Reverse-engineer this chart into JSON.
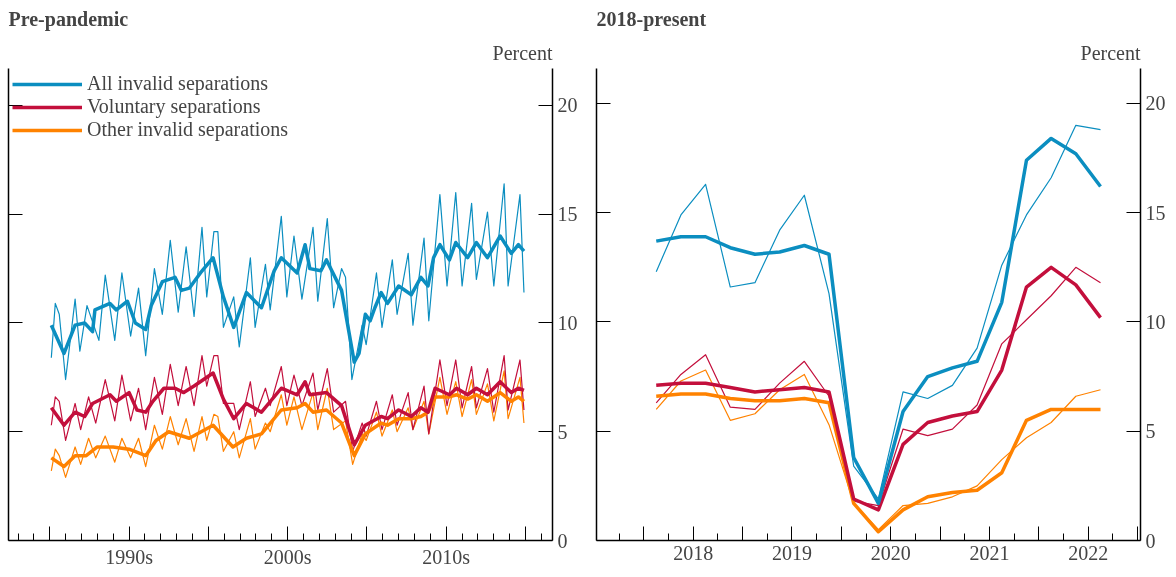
{
  "chart_data": [
    {
      "type": "line",
      "title": "Pre-pandemic",
      "ylabel": "Percent",
      "legend": "top left",
      "grid": false,
      "xlim": [
        1982.4,
        2016.7
      ],
      "ylim": [
        0,
        21.7
      ],
      "xticks": [
        {
          "value": 1985,
          "label": null
        },
        {
          "value": 1990,
          "label": "1990s"
        },
        {
          "value": 1995,
          "label": null
        },
        {
          "value": 2000,
          "label": "2000s"
        },
        {
          "value": 2005,
          "label": null
        },
        {
          "value": 2010,
          "label": "2010s"
        },
        {
          "value": 2015,
          "label": null
        }
      ],
      "yticks": [
        0,
        5,
        10,
        15,
        20
      ],
      "series": [
        {
          "name": "All invalid separations",
          "color": "#0b8ec0",
          "x": [
            1985.1,
            1985.9,
            1986.6,
            1987.2,
            1987.7,
            1987.85,
            1988.8,
            1989.2,
            1989.9,
            1990.4,
            1991.05,
            1991.4,
            1992.1,
            1992.9,
            1993.3,
            1993.8,
            1994.5,
            1995.3,
            1995.95,
            1996.6,
            1997.4,
            1998.35,
            1999.15,
            1999.6,
            2000.6,
            2001.1,
            2001.4,
            2002.1,
            2002.45,
            2003.4,
            2004.2,
            2004.5,
            2004.9,
            2005.2,
            2005.5,
            2005.9,
            2006.3,
            2007.0,
            2007.8,
            2008.4,
            2008.85,
            2009.2,
            2009.6,
            2010.2,
            2010.6,
            2011.35,
            2011.9,
            2012.6,
            2013.4,
            2014.1,
            2014.55,
            2014.9
          ],
          "values": [
            9.9,
            8.6,
            9.9,
            10.0,
            9.6,
            10.6,
            10.9,
            10.6,
            11.0,
            10.0,
            9.7,
            10.8,
            11.9,
            12.1,
            11.5,
            11.6,
            12.3,
            13.0,
            11.2,
            9.8,
            11.4,
            10.7,
            12.4,
            13.0,
            12.3,
            13.6,
            12.5,
            12.4,
            12.9,
            11.5,
            8.2,
            8.6,
            10.4,
            10.1,
            10.7,
            11.4,
            10.9,
            11.7,
            11.3,
            12.1,
            11.7,
            13.0,
            13.6,
            12.9,
            13.7,
            13.0,
            13.7,
            13.0,
            14.0,
            13.2,
            13.6,
            13.3
          ]
        },
        {
          "name": "Voluntary separations",
          "color": "#c30f3c",
          "x": [
            1985.1,
            1985.9,
            1986.6,
            1987.2,
            1987.7,
            1988.8,
            1989.2,
            1990.0,
            1990.5,
            1991.05,
            1991.5,
            1992.2,
            1992.9,
            1993.45,
            1994.1,
            1995.3,
            1995.95,
            1996.6,
            1997.4,
            1998.35,
            1999.6,
            2000.6,
            2001.1,
            2001.4,
            2002.45,
            2003.4,
            2004.2,
            2004.9,
            2005.9,
            2006.3,
            2007.0,
            2007.8,
            2008.4,
            2008.85,
            2009.3,
            2010.2,
            2010.65,
            2011.35,
            2011.9,
            2012.6,
            2013.4,
            2014.1,
            2014.55,
            2014.9
          ],
          "values": [
            6.1,
            5.3,
            5.9,
            5.7,
            6.3,
            6.7,
            6.4,
            6.8,
            6.0,
            5.9,
            6.4,
            7.0,
            7.0,
            6.8,
            7.1,
            7.7,
            6.5,
            5.6,
            6.3,
            5.9,
            7.0,
            6.7,
            7.3,
            6.7,
            6.8,
            6.2,
            4.4,
            5.3,
            5.7,
            5.6,
            6.0,
            5.7,
            6.1,
            5.9,
            7.0,
            6.7,
            7.0,
            6.7,
            7.0,
            6.7,
            7.3,
            6.8,
            7.0,
            6.9
          ]
        },
        {
          "name": "Other invalid separations",
          "color": "#ff8200",
          "x": [
            1985.1,
            1985.9,
            1986.6,
            1987.3,
            1988.0,
            1989.0,
            1990.0,
            1991.05,
            1991.7,
            1992.5,
            1993.8,
            1995.3,
            1996.55,
            1997.4,
            1998.35,
            1999.6,
            2000.6,
            2001.1,
            2001.6,
            2002.45,
            2003.4,
            2004.2,
            2004.9,
            2005.9,
            2006.3,
            2007.0,
            2007.8,
            2008.4,
            2008.85,
            2009.3,
            2010.2,
            2010.65,
            2011.35,
            2011.9,
            2012.6,
            2013.4,
            2014.1,
            2014.55,
            2014.9
          ],
          "values": [
            3.8,
            3.4,
            3.9,
            3.9,
            4.3,
            4.3,
            4.2,
            3.9,
            4.6,
            5.0,
            4.7,
            5.3,
            4.3,
            4.7,
            4.9,
            6.0,
            6.1,
            6.3,
            5.9,
            6.0,
            5.4,
            3.9,
            4.9,
            5.4,
            5.3,
            5.6,
            5.6,
            5.7,
            5.9,
            6.6,
            6.6,
            6.7,
            6.5,
            6.7,
            6.4,
            6.8,
            6.4,
            6.6,
            6.4
          ]
        },
        {
          "color": "#0b8ec0",
          "x": [
            1985.1,
            1985.35,
            1985.6,
            1986.0,
            1986.6,
            1986.9,
            1987.35,
            1988.1,
            1988.5,
            1989.1,
            1989.55,
            1990.1,
            1990.6,
            1991.05,
            1991.6,
            1992.1,
            1992.6,
            1993.1,
            1993.6,
            1994.1,
            1994.6,
            1994.9,
            1995.35,
            1995.6,
            1995.95,
            1996.6,
            1996.95,
            1997.65,
            1997.95,
            1998.6,
            1998.9,
            1999.6,
            1999.95,
            2000.4,
            2000.9,
            2001.6,
            2001.9,
            2002.5,
            2002.9,
            2003.4,
            2003.65,
            2004.05,
            2004.7,
            2004.95,
            2005.6,
            2005.95,
            2006.6,
            2006.9,
            2007.6,
            2007.9,
            2008.6,
            2008.9,
            2009.6,
            2010.05,
            2010.6,
            2011.0,
            2011.6,
            2011.9,
            2012.6,
            2013.0,
            2013.65,
            2013.9,
            2014.65,
            2014.9
          ],
          "values": [
            8.4,
            10.9,
            10.4,
            7.4,
            11.1,
            8.7,
            10.8,
            9.2,
            12.2,
            9.2,
            12.3,
            9.4,
            11.6,
            8.5,
            12.5,
            10.4,
            13.8,
            10.5,
            13.5,
            10.3,
            14.4,
            11.2,
            14.2,
            14.2,
            9.8,
            11.2,
            8.9,
            13.0,
            9.8,
            12.7,
            10.6,
            14.9,
            11.2,
            14.0,
            11.1,
            14.4,
            11.0,
            14.8,
            10.7,
            12.5,
            12.1,
            7.4,
            9.9,
            9.0,
            12.3,
            9.8,
            12.9,
            10.4,
            13.2,
            9.9,
            13.9,
            10.1,
            15.9,
            11.7,
            16.0,
            11.7,
            15.5,
            12.0,
            15.1,
            11.7,
            16.4,
            11.7,
            15.9,
            11.4
          ]
        },
        {
          "color": "#c30f3c",
          "x": [
            1985.1,
            1985.35,
            1985.6,
            1986.0,
            1986.6,
            1986.95,
            1987.45,
            1987.9,
            1988.5,
            1989.1,
            1989.55,
            1990.1,
            1990.6,
            1991.05,
            1991.6,
            1992.1,
            1992.6,
            1993.1,
            1993.6,
            1994.1,
            1994.6,
            1994.9,
            1995.35,
            1995.6,
            1995.95,
            1996.6,
            1996.95,
            1997.65,
            1997.95,
            1998.6,
            1998.9,
            1999.6,
            1999.95,
            2000.4,
            2000.9,
            2001.6,
            2001.9,
            2002.5,
            2002.9,
            2003.65,
            2004.1,
            2004.7,
            2004.95,
            2005.6,
            2005.95,
            2006.6,
            2006.9,
            2007.6,
            2007.9,
            2008.6,
            2008.9,
            2009.6,
            2010.05,
            2010.6,
            2011.0,
            2011.6,
            2011.9,
            2012.6,
            2013.0,
            2013.65,
            2013.9,
            2014.65,
            2014.9
          ],
          "values": [
            5.3,
            6.6,
            6.4,
            4.6,
            6.3,
            5.1,
            6.6,
            5.4,
            7.4,
            5.5,
            7.6,
            5.5,
            7.0,
            5.1,
            7.5,
            5.8,
            8.1,
            6.2,
            8.0,
            6.2,
            8.5,
            7.1,
            8.5,
            8.5,
            6.3,
            6.3,
            5.1,
            7.3,
            5.7,
            7.0,
            6.2,
            8.0,
            6.2,
            7.6,
            6.2,
            7.7,
            6.0,
            7.9,
            5.9,
            6.4,
            4.1,
            5.4,
            4.8,
            6.4,
            5.1,
            6.7,
            5.3,
            6.8,
            5.1,
            7.1,
            4.9,
            8.3,
            6.2,
            8.3,
            6.1,
            8.0,
            6.1,
            7.9,
            5.9,
            8.5,
            6.0,
            8.3,
            6.0
          ]
        },
        {
          "color": "#ff8200",
          "x": [
            1985.1,
            1985.35,
            1985.6,
            1986.0,
            1986.6,
            1986.95,
            1987.45,
            1987.9,
            1988.5,
            1989.1,
            1989.55,
            1990.1,
            1990.6,
            1991.05,
            1991.6,
            1992.1,
            1992.6,
            1993.1,
            1993.6,
            1994.1,
            1994.6,
            1994.9,
            1995.35,
            1995.6,
            1995.95,
            1996.6,
            1996.95,
            1997.65,
            1997.95,
            1998.6,
            1998.9,
            1999.6,
            1999.95,
            2000.4,
            2000.9,
            2001.6,
            2001.9,
            2002.5,
            2002.9,
            2003.65,
            2004.1,
            2004.7,
            2004.95,
            2005.6,
            2005.95,
            2006.6,
            2006.9,
            2007.6,
            2007.9,
            2008.6,
            2008.9,
            2009.6,
            2010.05,
            2010.6,
            2011.0,
            2011.6,
            2011.9,
            2012.6,
            2013.0,
            2013.65,
            2013.9,
            2014.65,
            2014.9
          ],
          "values": [
            3.2,
            4.2,
            3.9,
            2.9,
            4.3,
            3.5,
            4.7,
            3.8,
            4.8,
            3.6,
            4.7,
            3.8,
            4.7,
            3.4,
            5.3,
            4.2,
            5.7,
            4.4,
            5.6,
            4.1,
            5.7,
            4.6,
            5.8,
            5.7,
            4.1,
            5.0,
            3.8,
            5.6,
            4.2,
            5.4,
            5.0,
            6.7,
            5.3,
            6.6,
            5.1,
            6.8,
            5.1,
            7.0,
            5.1,
            5.5,
            3.5,
            4.9,
            4.6,
            5.9,
            4.8,
            6.0,
            5.0,
            6.1,
            5.1,
            6.4,
            4.9,
            7.5,
            5.8,
            7.3,
            5.7,
            7.4,
            5.8,
            7.2,
            5.5,
            7.8,
            5.6,
            7.5,
            5.4
          ]
        }
      ]
    },
    {
      "type": "line",
      "title": "2018-present",
      "ylabel": "Percent",
      "grid": false,
      "xlim": [
        2017.52,
        2023.03
      ],
      "ylim": [
        0,
        21.6
      ],
      "xticks": [
        {
          "value": 2018,
          "label": null
        },
        {
          "value": 2018.5,
          "label": "2018"
        },
        {
          "value": 2019,
          "label": null
        },
        {
          "value": 2019.5,
          "label": "2019"
        },
        {
          "value": 2020,
          "label": null
        },
        {
          "value": 2020.5,
          "label": "2020"
        },
        {
          "value": 2021,
          "label": null
        },
        {
          "value": 2021.5,
          "label": "2021"
        },
        {
          "value": 2022,
          "label": null
        },
        {
          "value": 2022.5,
          "label": "2022"
        },
        {
          "value": 2023,
          "label": null
        }
      ],
      "yticks": [
        0,
        5,
        10,
        15,
        20
      ],
      "x": [
        2018.125,
        2018.375,
        2018.625,
        2018.875,
        2019.125,
        2019.375,
        2019.625,
        2019.875,
        2020.125,
        2020.375,
        2020.625,
        2020.875,
        2021.125,
        2021.375,
        2021.625,
        2021.875,
        2022.125,
        2022.375,
        2022.625
      ],
      "series": [
        {
          "color": "#0b8ec0",
          "values": [
            13.7,
            13.9,
            13.9,
            13.4,
            13.1,
            13.2,
            13.5,
            13.1,
            3.8,
            1.7,
            5.9,
            7.5,
            7.9,
            8.2,
            10.9,
            17.4,
            18.4,
            17.7,
            16.2
          ]
        },
        {
          "color": "#c30f3c",
          "values": [
            7.1,
            7.2,
            7.2,
            7.0,
            6.8,
            6.9,
            7.0,
            6.8,
            1.9,
            1.4,
            4.4,
            5.4,
            5.7,
            5.9,
            7.8,
            11.6,
            12.5,
            11.7,
            10.2
          ]
        },
        {
          "color": "#ff8200",
          "values": [
            6.6,
            6.7,
            6.7,
            6.5,
            6.4,
            6.4,
            6.5,
            6.3,
            1.7,
            0.4,
            1.4,
            2.0,
            2.2,
            2.3,
            3.1,
            5.5,
            6.0,
            6.0,
            6.0
          ]
        },
        {
          "color": "#0b8ec0",
          "values": [
            12.3,
            14.9,
            16.3,
            11.6,
            11.8,
            14.2,
            15.8,
            11.3,
            3.4,
            1.9,
            6.8,
            6.5,
            7.1,
            8.8,
            12.6,
            14.9,
            16.6,
            19.0,
            18.8
          ]
        },
        {
          "color": "#c30f3c",
          "values": [
            6.3,
            7.6,
            8.5,
            6.1,
            6.0,
            7.2,
            8.2,
            6.6,
            1.8,
            1.6,
            5.1,
            4.8,
            5.1,
            6.2,
            9.0,
            10.1,
            11.2,
            12.5,
            11.8
          ]
        },
        {
          "color": "#ff8200",
          "values": [
            6.0,
            7.3,
            7.8,
            5.5,
            5.8,
            6.9,
            7.6,
            5.3,
            1.7,
            0.5,
            1.6,
            1.7,
            2.0,
            2.5,
            3.7,
            4.7,
            5.4,
            6.6,
            6.9
          ]
        }
      ]
    }
  ]
}
